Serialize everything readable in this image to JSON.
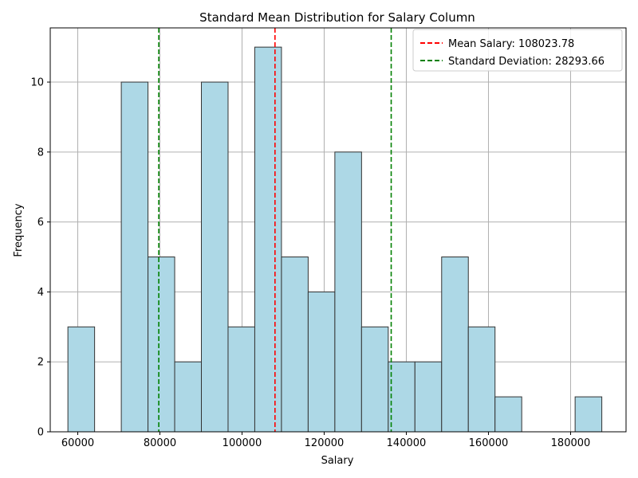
{
  "chart_data": {
    "type": "bar",
    "title": "Standard Mean Distribution for Salary Column",
    "xlabel": "Salary",
    "ylabel": "Frequency",
    "xlim": [
      53300,
      193500
    ],
    "ylim": [
      0,
      11.55
    ],
    "x_ticks": [
      60000,
      80000,
      100000,
      120000,
      140000,
      160000,
      180000
    ],
    "y_ticks": [
      0,
      2,
      4,
      6,
      8,
      10
    ],
    "grid": true,
    "bar_color": "#add8e6",
    "bar_edge_color": "#333333",
    "bins": [
      {
        "start": 57600,
        "end": 64100,
        "count": 3
      },
      {
        "start": 64100,
        "end": 70600,
        "count": 0
      },
      {
        "start": 70600,
        "end": 77100,
        "count": 10
      },
      {
        "start": 77100,
        "end": 83600,
        "count": 5
      },
      {
        "start": 83600,
        "end": 90100,
        "count": 2
      },
      {
        "start": 90100,
        "end": 96600,
        "count": 10
      },
      {
        "start": 96600,
        "end": 103100,
        "count": 3
      },
      {
        "start": 103100,
        "end": 109600,
        "count": 11
      },
      {
        "start": 109600,
        "end": 116100,
        "count": 5
      },
      {
        "start": 116100,
        "end": 122600,
        "count": 4
      },
      {
        "start": 122600,
        "end": 129100,
        "count": 8
      },
      {
        "start": 129100,
        "end": 135600,
        "count": 3
      },
      {
        "start": 135600,
        "end": 142100,
        "count": 2
      },
      {
        "start": 142100,
        "end": 148600,
        "count": 2
      },
      {
        "start": 148600,
        "end": 155100,
        "count": 5
      },
      {
        "start": 155100,
        "end": 161600,
        "count": 3
      },
      {
        "start": 161600,
        "end": 168100,
        "count": 1
      },
      {
        "start": 168100,
        "end": 174600,
        "count": 0
      },
      {
        "start": 174600,
        "end": 181100,
        "count": 0
      },
      {
        "start": 181100,
        "end": 187600,
        "count": 1
      }
    ],
    "vlines": [
      {
        "x": 108023.78,
        "color": "#ff0000",
        "style": "dashed"
      },
      {
        "x": 79730.12,
        "color": "#008000",
        "style": "dashed"
      },
      {
        "x": 136317.44,
        "color": "#008000",
        "style": "dashed"
      }
    ],
    "legend": {
      "placement": "top-right",
      "entries": [
        {
          "label": "Mean Salary: 108023.78",
          "color": "#ff0000",
          "style": "dashed"
        },
        {
          "label": "Standard Deviation: 28293.66",
          "color": "#008000",
          "style": "dashed"
        }
      ]
    }
  }
}
